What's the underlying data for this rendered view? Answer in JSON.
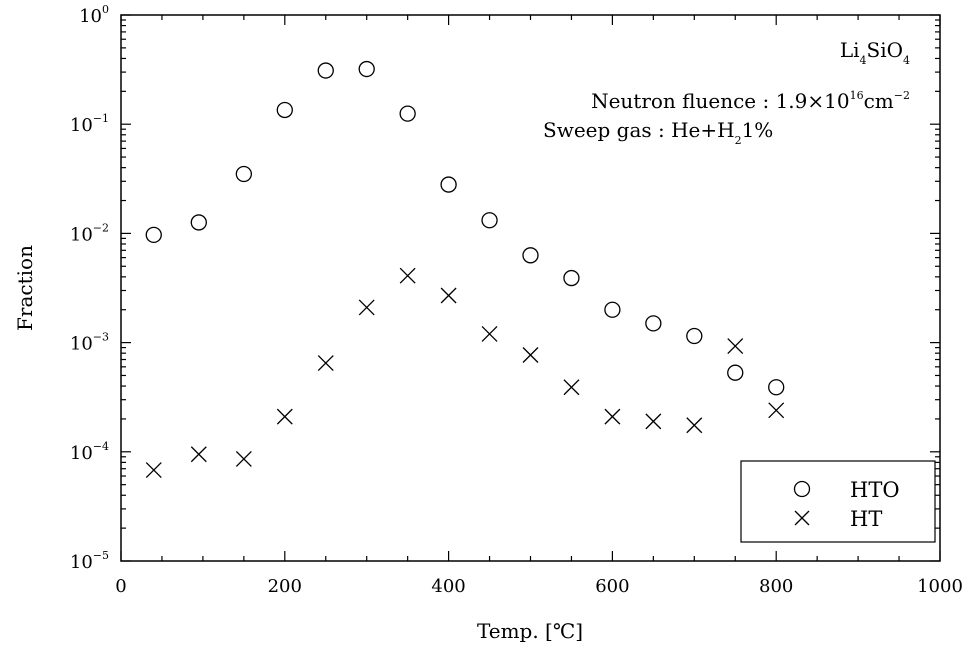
{
  "chart_data": {
    "type": "scatter",
    "xlabel": "Temp. [℃]",
    "ylabel": "Fraction",
    "xlim": [
      0,
      1000
    ],
    "ylim": [
      1e-05,
      1
    ],
    "y_scale": "log",
    "x_ticks": [
      0,
      200,
      400,
      600,
      800,
      1000
    ],
    "x_tick_labels": [
      "0",
      "200",
      "400",
      "600",
      "800",
      "1000"
    ],
    "y_ticks": [
      {
        "base": "10",
        "exp": "0",
        "value": 1
      },
      {
        "base": "10",
        "exp": "-1",
        "value": 0.1
      },
      {
        "base": "10",
        "exp": "-2",
        "value": 0.01
      },
      {
        "base": "10",
        "exp": "-3",
        "value": 0.001
      },
      {
        "base": "10",
        "exp": "-4",
        "value": 0.0001
      },
      {
        "base": "10",
        "exp": "-5",
        "value": 1e-05
      }
    ],
    "grid": false,
    "legend_position": "bottom-right",
    "series": [
      {
        "name": "HTO",
        "marker": "circle",
        "x": [
          40,
          95,
          150,
          200,
          250,
          300,
          350,
          400,
          450,
          500,
          550,
          600,
          650,
          700,
          750,
          800
        ],
        "y": [
          0.0097,
          0.0126,
          0.035,
          0.135,
          0.31,
          0.32,
          0.125,
          0.028,
          0.0132,
          0.0063,
          0.0039,
          0.002,
          0.0015,
          0.00115,
          0.00053,
          0.00039
        ]
      },
      {
        "name": "HT",
        "marker": "x",
        "x": [
          40,
          95,
          150,
          200,
          250,
          300,
          350,
          400,
          450,
          500,
          550,
          600,
          650,
          700,
          750,
          800
        ],
        "y": [
          6.8e-05,
          9.5e-05,
          8.6e-05,
          0.00021,
          0.00065,
          0.0021,
          0.0041,
          0.0027,
          0.0012,
          0.00077,
          0.00039,
          0.00021,
          0.00019,
          0.000175,
          0.00093,
          0.00024
        ]
      }
    ],
    "annotations": {
      "material": {
        "main1": "Li",
        "sub1": "4",
        "main2": "SiO",
        "sub2": "4"
      },
      "fluence": {
        "prefix": "Neutron fluence : 1.9×10",
        "exp1": "16",
        "mid": "cm",
        "exp2": "−2"
      },
      "sweep": {
        "prefix": "Sweep gas : He+H",
        "sub": "2",
        "suffix": "1%"
      }
    }
  }
}
